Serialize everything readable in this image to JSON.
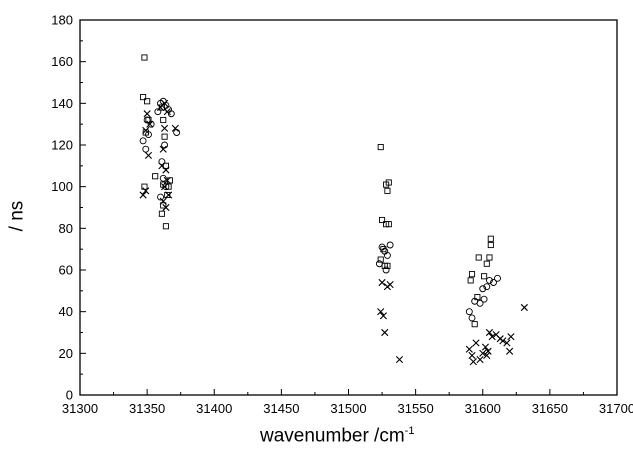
{
  "chart_data": {
    "type": "scatter",
    "title": "",
    "xlabel": "wavenumber  /cm",
    "xlabel_superscript": "-1",
    "ylabel": "/ ns",
    "xlim": [
      31300,
      31700
    ],
    "ylim": [
      0,
      180
    ],
    "x_ticks": [
      31300,
      31350,
      31400,
      31450,
      31500,
      31550,
      31600,
      31650,
      31700
    ],
    "y_ticks": [
      0,
      20,
      40,
      60,
      80,
      100,
      120,
      140,
      160,
      180
    ],
    "grid": false,
    "legend": "none",
    "series": [
      {
        "marker": "square",
        "points": [
          [
            31348,
            162
          ],
          [
            31347,
            143
          ],
          [
            31350,
            141
          ],
          [
            31351,
            132
          ],
          [
            31349,
            126
          ],
          [
            31348,
            100
          ],
          [
            31356,
            105
          ],
          [
            31361,
            138
          ],
          [
            31362,
            132
          ],
          [
            31363,
            124
          ],
          [
            31364,
            110
          ],
          [
            31362,
            101
          ],
          [
            31365,
            96
          ],
          [
            31362,
            91
          ],
          [
            31361,
            87
          ],
          [
            31364,
            81
          ],
          [
            31367,
            103
          ],
          [
            31366,
            100
          ],
          [
            31524,
            119
          ],
          [
            31528,
            101
          ],
          [
            31530,
            102
          ],
          [
            31529,
            98
          ],
          [
            31525,
            84
          ],
          [
            31528,
            82
          ],
          [
            31530,
            82
          ],
          [
            31526,
            70
          ],
          [
            31524,
            65
          ],
          [
            31527,
            62
          ],
          [
            31529,
            62
          ],
          [
            31597,
            66
          ],
          [
            31592,
            58
          ],
          [
            31591,
            55
          ],
          [
            31596,
            47
          ],
          [
            31594,
            34
          ],
          [
            31606,
            75
          ],
          [
            31606,
            72
          ],
          [
            31605,
            66
          ],
          [
            31603,
            63
          ],
          [
            31601,
            57
          ]
        ]
      },
      {
        "marker": "circle",
        "points": [
          [
            31347,
            122
          ],
          [
            31349,
            118
          ],
          [
            31351,
            125
          ],
          [
            31353,
            130
          ],
          [
            31350,
            132
          ],
          [
            31358,
            136
          ],
          [
            31360,
            140
          ],
          [
            31362,
            141
          ],
          [
            31364,
            139
          ],
          [
            31366,
            137
          ],
          [
            31368,
            135
          ],
          [
            31372,
            126
          ],
          [
            31363,
            120
          ],
          [
            31361,
            112
          ],
          [
            31362,
            104
          ],
          [
            31364,
            100
          ],
          [
            31360,
            95
          ],
          [
            31525,
            71
          ],
          [
            31527,
            69
          ],
          [
            31531,
            72
          ],
          [
            31529,
            67
          ],
          [
            31523,
            63
          ],
          [
            31528,
            60
          ],
          [
            31590,
            40
          ],
          [
            31592,
            37
          ],
          [
            31594,
            45
          ],
          [
            31598,
            44
          ],
          [
            31601,
            46
          ],
          [
            31600,
            51
          ],
          [
            31603,
            52
          ],
          [
            31605,
            55
          ],
          [
            31611,
            56
          ],
          [
            31608,
            54
          ]
        ]
      },
      {
        "marker": "x",
        "points": [
          [
            31347,
            96
          ],
          [
            31349,
            98
          ],
          [
            31351,
            115
          ],
          [
            31349,
            127
          ],
          [
            31352,
            130
          ],
          [
            31350,
            135
          ],
          [
            31363,
            128
          ],
          [
            31362,
            118
          ],
          [
            31364,
            108
          ],
          [
            31361,
            110
          ],
          [
            31365,
            103
          ],
          [
            31363,
            100
          ],
          [
            31366,
            96
          ],
          [
            31362,
            93
          ],
          [
            31364,
            90
          ],
          [
            31371,
            128
          ],
          [
            31360,
            138
          ],
          [
            31365,
            136
          ],
          [
            31363,
            140
          ],
          [
            31524,
            40
          ],
          [
            31526,
            38
          ],
          [
            31525,
            54
          ],
          [
            31529,
            52
          ],
          [
            31531,
            53
          ],
          [
            31527,
            30
          ],
          [
            31538,
            17
          ],
          [
            31590,
            22
          ],
          [
            31592,
            19
          ],
          [
            31593,
            16
          ],
          [
            31595,
            25
          ],
          [
            31598,
            17
          ],
          [
            31600,
            20
          ],
          [
            31602,
            23
          ],
          [
            31604,
            21
          ],
          [
            31605,
            30
          ],
          [
            31607,
            28
          ],
          [
            31610,
            29
          ],
          [
            31613,
            27
          ],
          [
            31615,
            26
          ],
          [
            31618,
            25
          ],
          [
            31620,
            21
          ],
          [
            31621,
            28
          ],
          [
            31603,
            19
          ],
          [
            31631,
            42
          ]
        ]
      }
    ]
  }
}
